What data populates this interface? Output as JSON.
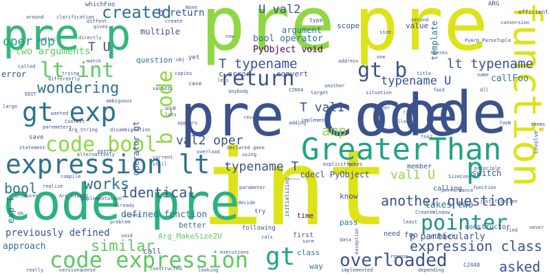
{
  "words": [
    {
      "text": "pre",
      "color": "#8fd744"
    },
    {
      "text": "pre",
      "color": "#dde318"
    },
    {
      "text": "code",
      "color": "#3b528b"
    },
    {
      "text": "int",
      "color": "#dde318"
    },
    {
      "text": "pre code",
      "color": "#3b528b"
    },
    {
      "text": "code pre",
      "color": "#2db27d"
    },
    {
      "text": "pre p",
      "color": "#35b779"
    },
    {
      "text": "GreaterThan",
      "color": "#20a386"
    },
    {
      "text": "function",
      "color": "#dde318"
    },
    {
      "text": "expression lt",
      "color": "#2c728e"
    },
    {
      "text": "gt exp",
      "color": "#2c728e"
    },
    {
      "text": "code bool",
      "color": "#8fd744"
    },
    {
      "text": "code expression",
      "color": "#5ec962"
    },
    {
      "text": "pointer",
      "color": "#21918c"
    },
    {
      "text": "return",
      "color": "#3b528b"
    },
    {
      "text": "lt int",
      "color": "#5ec962"
    },
    {
      "text": "gt b",
      "color": "#3b528b"
    },
    {
      "text": "b code",
      "color": "#8fd744"
    },
    {
      "text": "overloaded",
      "color": "#3b528b"
    },
    {
      "text": "gt",
      "color": "#20a386"
    },
    {
      "text": "p",
      "color": "#20a386"
    },
    {
      "text": "created",
      "color": "#2c728e"
    },
    {
      "text": "wondering",
      "color": "#2c728e"
    },
    {
      "text": "works",
      "color": "#2c728e"
    },
    {
      "text": "identical",
      "color": "#3b528b"
    },
    {
      "text": "similar",
      "color": "#5ec962"
    },
    {
      "text": "bool",
      "color": "#2c728e"
    },
    {
      "text": "asked",
      "color": "#3b528b"
    },
    {
      "text": "another question",
      "color": "#3b528b"
    },
    {
      "text": "expression class",
      "color": "#3b528b"
    },
    {
      "text": "amp",
      "color": "#8fd744"
    },
    {
      "text": "lt typename",
      "color": "#3b528b"
    },
    {
      "text": "T typename",
      "color": "#3b528b"
    },
    {
      "text": "typename U",
      "color": "#3b528b"
    },
    {
      "text": "T val1",
      "color": "#3b528b"
    },
    {
      "text": "val1 U",
      "color": "#8fd744"
    },
    {
      "text": "val2 oper",
      "color": "#3b528b"
    },
    {
      "text": "typename T",
      "color": "#3b528b"
    },
    {
      "text": "U val2",
      "color": "#3b528b"
    },
    {
      "text": "b return",
      "color": "#3b528b"
    },
    {
      "text": "bool operator",
      "color": "#2c728e"
    },
    {
      "text": "PyObject void",
      "color": "#440154"
    },
    {
      "text": "T U",
      "color": "#3b528b"
    },
    {
      "text": "oper op",
      "color": "#20a386"
    },
    {
      "text": "two arguments",
      "color": "#5ec962"
    },
    {
      "text": "previously defined",
      "color": "#3b528b"
    },
    {
      "text": "defined function",
      "color": "#2c728e"
    },
    {
      "text": "p particularly",
      "color": "#3b528b"
    },
    {
      "text": "takes two",
      "color": "#2c728e"
    },
    {
      "text": "callFoo",
      "color": "#2c728e"
    },
    {
      "text": "exp T",
      "color": "#2c728e"
    },
    {
      "text": "approach",
      "color": "#2c728e"
    },
    {
      "text": "multiple",
      "color": "#3b528b"
    },
    {
      "text": "operator gt",
      "color": "#3b528b"
    },
    {
      "text": "argument",
      "color": "#2c728e"
    },
    {
      "text": "__cdecl PyObject",
      "color": "#3b528b"
    },
    {
      "text": "switch",
      "color": "#3b528b"
    },
    {
      "text": "template",
      "color": "#2c728e"
    },
    {
      "text": "Arg_MakeSize2U",
      "color": "#5ec962"
    },
    {
      "text": "error",
      "color": "#3b528b"
    },
    {
      "text": "c error",
      "color": "#3b528b"
    },
    {
      "text": "convert",
      "color": "#3b528b"
    },
    {
      "text": "question",
      "color": "#2c728e"
    },
    {
      "text": "better",
      "color": "#2c728e"
    },
    {
      "text": "scope",
      "color": "#3b528b"
    },
    {
      "text": "value",
      "color": "#3b528b"
    },
    {
      "text": "pass",
      "color": "#2c728e"
    },
    {
      "text": "know",
      "color": "#3b528b"
    },
    {
      "text": "way",
      "color": "#2c728e"
    },
    {
      "text": "class",
      "color": "#2c728e"
    },
    {
      "text": "call",
      "color": "#3b528b"
    },
    {
      "text": "foo",
      "color": "#3b528b"
    },
    {
      "text": "need",
      "color": "#3b528b"
    },
    {
      "text": "time",
      "color": "#440154"
    },
    {
      "text": "first",
      "color": "#3b528b"
    },
    {
      "text": "number",
      "color": "#3b528b"
    },
    {
      "text": "constructor",
      "color": "#3b528b"
    },
    {
      "text": "calling",
      "color": "#3b528b"
    },
    {
      "text": "member",
      "color": "#3b528b"
    },
    {
      "text": "whichFoo",
      "color": "#3b528b"
    },
    {
      "text": "around",
      "color": "#3b528b"
    },
    {
      "text": "clarification",
      "color": "#3b528b"
    },
    {
      "text": "diffent",
      "color": "#3b528b"
    },
    {
      "text": "differently",
      "color": "#3b528b"
    },
    {
      "text": "called",
      "color": "#3b528b"
    },
    {
      "text": "trying",
      "color": "#3b528b"
    },
    {
      "text": "match",
      "color": "#3b528b"
    },
    {
      "text": "directly",
      "color": "#3b528b"
    },
    {
      "text": "create",
      "color": "#3b528b"
    },
    {
      "text": "None",
      "color": "#3b528b"
    },
    {
      "text": "public",
      "color": "#3b528b"
    },
    {
      "text": "gives",
      "color": "#3b528b"
    },
    {
      "text": "ARG",
      "color": "#3b528b"
    },
    {
      "text": "efficient",
      "color": "#3b528b"
    },
    {
      "text": "conversion",
      "color": "#3b528b"
    },
    {
      "text": "PyArg_ParseTuple",
      "color": "#3b528b"
    },
    {
      "text": "involve",
      "color": "#3b528b"
    },
    {
      "text": "second",
      "color": "#3b528b"
    },
    {
      "text": "theres",
      "color": "#3b528b"
    },
    {
      "text": "title",
      "color": "#3b528b"
    },
    {
      "text": "name",
      "color": "#3b528b"
    },
    {
      "text": "dll",
      "color": "#3b528b"
    },
    {
      "text": "foo3",
      "color": "#3b528b"
    },
    {
      "text": "another",
      "color": "#3b528b"
    },
    {
      "text": "target",
      "color": "#3b528b"
    },
    {
      "text": "situation",
      "color": "#3b528b"
    },
    {
      "text": "address",
      "color": "#3b528b"
    },
    {
      "text": "one",
      "color": "#3b528b"
    },
    {
      "text": "size",
      "color": "#3b528b"
    },
    {
      "text": "type",
      "color": "#3b528b"
    },
    {
      "text": "now",
      "color": "#3b528b"
    },
    {
      "text": "yet",
      "color": "#3b528b"
    },
    {
      "text": "copies",
      "color": "#3b528b"
    },
    {
      "text": "varadic",
      "color": "#3b528b"
    },
    {
      "text": "case",
      "color": "#3b528b"
    },
    {
      "text": "less",
      "color": "#3b528b"
    },
    {
      "text": "use",
      "color": "#3b528b"
    },
    {
      "text": "lots",
      "color": "#3b528b"
    },
    {
      "text": "appears",
      "color": "#3b528b"
    },
    {
      "text": "save",
      "color": "#3b528b"
    },
    {
      "text": "statement",
      "color": "#3b528b"
    },
    {
      "text": "paremeters",
      "color": "#3b528b"
    },
    {
      "text": "wanted",
      "color": "#3b528b"
    },
    {
      "text": "Context",
      "color": "#3b528b"
    },
    {
      "text": "Arg_String",
      "color": "#3b528b"
    },
    {
      "text": "disambiguation",
      "color": "#3b528b"
    },
    {
      "text": "EDIT",
      "color": "#3b528b"
    },
    {
      "text": "large",
      "color": "#3b528b"
    },
    {
      "text": "compile",
      "color": "#3b528b"
    },
    {
      "text": "realize",
      "color": "#3b528b"
    },
    {
      "text": "produces",
      "color": "#3b528b"
    },
    {
      "text": "Arg_Size2U",
      "color": "#3b528b"
    },
    {
      "text": "Alternatively",
      "color": "#3b528b"
    },
    {
      "text": "implementation",
      "color": "#3b528b"
    },
    {
      "text": "Oh",
      "color": "#3b528b"
    },
    {
      "text": "slower",
      "color": "#3b528b"
    },
    {
      "text": "problem",
      "color": "#3b528b"
    },
    {
      "text": "already",
      "color": "#3b528b"
    },
    {
      "text": "void",
      "color": "#3b528b"
    },
    {
      "text": "executions",
      "color": "#3b528b"
    },
    {
      "text": "looking",
      "color": "#3b528b"
    },
    {
      "text": "versions",
      "color": "#3b528b"
    },
    {
      "text": "sense",
      "color": "#3b528b"
    },
    {
      "text": "really",
      "color": "#3b528b"
    },
    {
      "text": "constructed",
      "color": "#3b528b"
    },
    {
      "text": "implemented",
      "color": "#3b528b"
    },
    {
      "text": "depending",
      "color": "#3b528b"
    },
    {
      "text": "C2440",
      "color": "#3b528b"
    },
    {
      "text": "reason",
      "color": "#3b528b"
    },
    {
      "text": "data",
      "color": "#3b528b"
    },
    {
      "text": "exception",
      "color": "#3b528b"
    },
    {
      "text": "sure",
      "color": "#3b528b"
    },
    {
      "text": "cals",
      "color": "#3b528b"
    },
    {
      "text": "following",
      "color": "#3b528b"
    },
    {
      "text": "try",
      "color": "#3b528b"
    },
    {
      "text": "decide",
      "color": "#3b528b"
    },
    {
      "text": "parameter",
      "color": "#3b528b"
    },
    {
      "text": "initializing",
      "color": "#3b528b"
    },
    {
      "text": "declared",
      "color": "#3b528b"
    },
    {
      "text": "gave",
      "color": "#3b528b"
    },
    {
      "text": "using",
      "color": "#3b528b"
    },
    {
      "text": "makes",
      "color": "#3b528b"
    },
    {
      "text": "explicitly",
      "color": "#3b528b"
    },
    {
      "text": "SizeConv",
      "color": "#3b528b"
    },
    {
      "text": "performance",
      "color": "#3b528b"
    },
    {
      "text": "function",
      "color": "#3b528b"
    },
    {
      "text": "principle",
      "color": "#3b528b"
    },
    {
      "text": "justification",
      "color": "#3b528b"
    },
    {
      "text": "CreateWindow",
      "color": "#3b528b"
    },
    {
      "text": "least",
      "color": "#3b528b"
    },
    {
      "text": "find",
      "color": "#3b528b"
    },
    {
      "text": "never",
      "color": "#3b528b"
    },
    {
      "text": "seems",
      "color": "#3b528b"
    },
    {
      "text": "fooN",
      "color": "#3b528b"
    },
    {
      "text": "allow",
      "color": "#3b528b"
    },
    {
      "text": "right",
      "color": "#3b528b"
    },
    {
      "text": "bother",
      "color": "#3b528b"
    },
    {
      "text": "foo1",
      "color": "#3b528b"
    },
    {
      "text": "implement",
      "color": "#3b528b"
    },
    {
      "text": "adding",
      "color": "#3b528b"
    },
    {
      "text": "result",
      "color": "#3b528b"
    },
    {
      "text": "C2664",
      "color": "#3b528b"
    },
    {
      "text": "anybody",
      "color": "#3b528b"
    },
    {
      "text": "current",
      "color": "#3b528b"
    },
    {
      "text": "still",
      "color": "#3b528b"
    },
    {
      "text": "overload",
      "color": "#3b528b"
    },
    {
      "text": "EDIT2",
      "color": "#3b528b"
    },
    {
      "text": "ambiguous",
      "color": "#3b528b"
    },
    {
      "text": "obj",
      "color": "#3b528b"
    }
  ]
}
